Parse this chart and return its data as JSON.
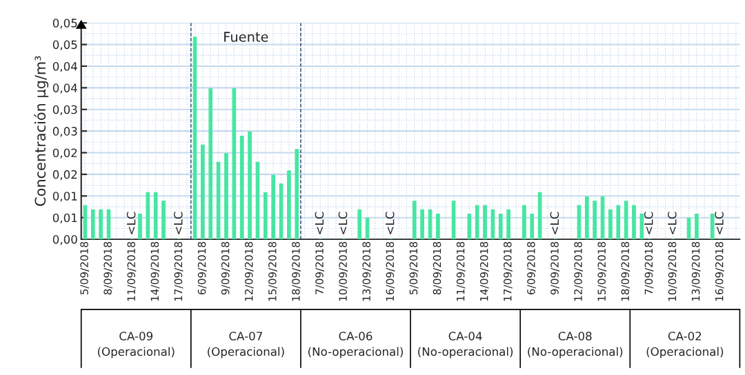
{
  "chart_data": {
    "type": "bar",
    "ylabel": "Concentración µg/m³",
    "categories": [
      "5/09/2018",
      null,
      null,
      "8/09/2018",
      null,
      null,
      "11/09/2018",
      null,
      null,
      "14/09/2018",
      null,
      null,
      "17/09/2018",
      null,
      null,
      "6/09/2018",
      null,
      null,
      "9/09/2018",
      null,
      null,
      "12/09/2018",
      null,
      null,
      "15/09/2018",
      null,
      null,
      "18/09/2018",
      null,
      null,
      "7/09/2018",
      null,
      null,
      "10/09/2018",
      null,
      null,
      "13/09/2018",
      null,
      null,
      "16/09/2018",
      null,
      null,
      "5/09/2018",
      null,
      null,
      "8/09/2018",
      null,
      null,
      "11/09/2018",
      null,
      null,
      "14/09/2018",
      null,
      null,
      "17/09/2018",
      null,
      null,
      "6/09/2018",
      null,
      null,
      "9/09/2018",
      null,
      null,
      "12/09/2018",
      null,
      null,
      "15/09/2018",
      null,
      null,
      "18/09/2018",
      null,
      null,
      "7/09/2018",
      null,
      null,
      "10/09/2018",
      null,
      null,
      "13/09/2018",
      null,
      null,
      "16/09/2018",
      null,
      null
    ],
    "values": [
      0.0078,
      0.0068,
      0.0068,
      0.0068,
      null,
      null,
      0,
      0.0058,
      0.0108,
      0.0108,
      0.0088,
      null,
      0,
      null,
      0.0467,
      0.0218,
      0.0348,
      0.0178,
      0.0198,
      0.0348,
      0.0238,
      0.0248,
      0.0178,
      0.0108,
      0.0148,
      0.0128,
      0.0158,
      0.0208,
      null,
      null,
      0,
      null,
      null,
      0,
      null,
      0.0068,
      0.0049,
      null,
      null,
      0,
      null,
      null,
      0.0088,
      0.0068,
      0.0068,
      0.0058,
      null,
      0.0088,
      null,
      0.0058,
      0.0078,
      0.0078,
      0.0068,
      0.0058,
      0.0068,
      null,
      0.0078,
      0.0058,
      0.0108,
      null,
      0,
      null,
      null,
      0.0078,
      0.0098,
      0.0088,
      0.0098,
      0.0068,
      0.0078,
      0.0088,
      0.0078,
      0.0058,
      0,
      null,
      null,
      0,
      null,
      0.0049,
      0.0058,
      null,
      0.0058,
      0,
      null,
      null
    ],
    "value_labels": [
      null,
      null,
      null,
      null,
      null,
      null,
      "<LC",
      null,
      null,
      null,
      null,
      null,
      "<LC",
      null,
      null,
      null,
      null,
      null,
      null,
      null,
      null,
      null,
      null,
      null,
      null,
      null,
      null,
      null,
      null,
      null,
      "<LC",
      null,
      null,
      "<LC",
      null,
      null,
      null,
      null,
      null,
      "<LC",
      null,
      null,
      null,
      null,
      null,
      null,
      null,
      null,
      null,
      null,
      null,
      null,
      null,
      null,
      null,
      null,
      null,
      null,
      null,
      null,
      "<LC",
      null,
      null,
      null,
      null,
      null,
      null,
      null,
      null,
      null,
      null,
      null,
      "<LC",
      null,
      null,
      "<LC",
      null,
      null,
      null,
      null,
      null,
      "<LC",
      null,
      null
    ],
    "color": "#46e6a2",
    "ylim": [
      0,
      0.05
    ],
    "yticks": [
      {
        "value": 0,
        "label": "0,00"
      },
      {
        "value": 0.005,
        "label": "0,01"
      },
      {
        "value": 0.01,
        "label": "0,01"
      },
      {
        "value": 0.015,
        "label": "0,02"
      },
      {
        "value": 0.02,
        "label": "0,02"
      },
      {
        "value": 0.025,
        "label": "0,03"
      },
      {
        "value": 0.03,
        "label": "0,03"
      },
      {
        "value": 0.035,
        "label": "0,04"
      },
      {
        "value": 0.04,
        "label": "0,04"
      },
      {
        "value": 0.045,
        "label": "0,05"
      },
      {
        "value": 0.05,
        "label": "0,05"
      }
    ],
    "grid": true,
    "annotations": [
      "Fuente",
      "CA-09\n(Operacional)",
      "CA-07\n(Operacional)",
      "CA-06\n(No-operacional)",
      "CA-04\n(No-operacional)",
      "CA-08\n(No-operacional)",
      "CA-02\n(Operacional)"
    ]
  }
}
